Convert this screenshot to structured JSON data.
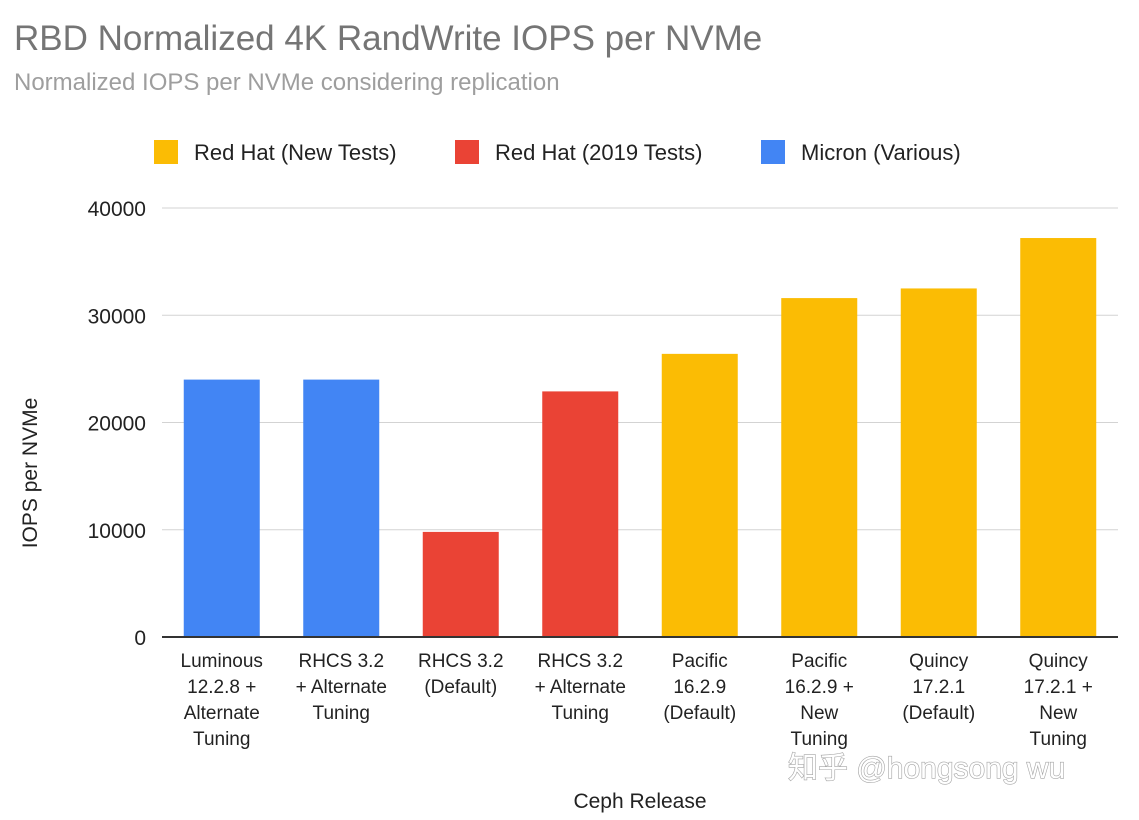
{
  "chart_data": {
    "type": "bar",
    "title": "RBD Normalized 4K RandWrite IOPS per NVMe",
    "subtitle": "Normalized IOPS per NVMe considering replication",
    "xlabel": "Ceph Release",
    "ylabel": "IOPS per NVMe",
    "ylim": [
      0,
      40000
    ],
    "yticks": [
      0,
      10000,
      20000,
      30000,
      40000
    ],
    "legend_position": "top",
    "grid": true,
    "legend": [
      {
        "name": "Red Hat (New Tests)",
        "color": "#fbbc04"
      },
      {
        "name": "Red Hat (2019 Tests)",
        "color": "#ea4335"
      },
      {
        "name": "Micron (Various)",
        "color": "#4285f4"
      }
    ],
    "categories": [
      [
        "Luminous",
        "12.2.8 +",
        "Alternate",
        "Tuning"
      ],
      [
        "RHCS 3.2",
        "+ Alternate",
        "Tuning"
      ],
      [
        "RHCS 3.2",
        "(Default)"
      ],
      [
        "RHCS 3.2",
        "+ Alternate",
        "Tuning"
      ],
      [
        "Pacific",
        "16.2.9",
        "(Default)"
      ],
      [
        "Pacific",
        "16.2.9 +",
        "New",
        "Tuning"
      ],
      [
        "Quincy",
        "17.2.1",
        "(Default)"
      ],
      [
        "Quincy",
        "17.2.1 +",
        "New",
        "Tuning"
      ]
    ],
    "values": [
      24000,
      24000,
      9800,
      22900,
      26400,
      31600,
      32500,
      37200
    ],
    "series_index": [
      2,
      2,
      1,
      1,
      0,
      0,
      0,
      0
    ]
  },
  "watermark": "知乎 @hongsong wu"
}
